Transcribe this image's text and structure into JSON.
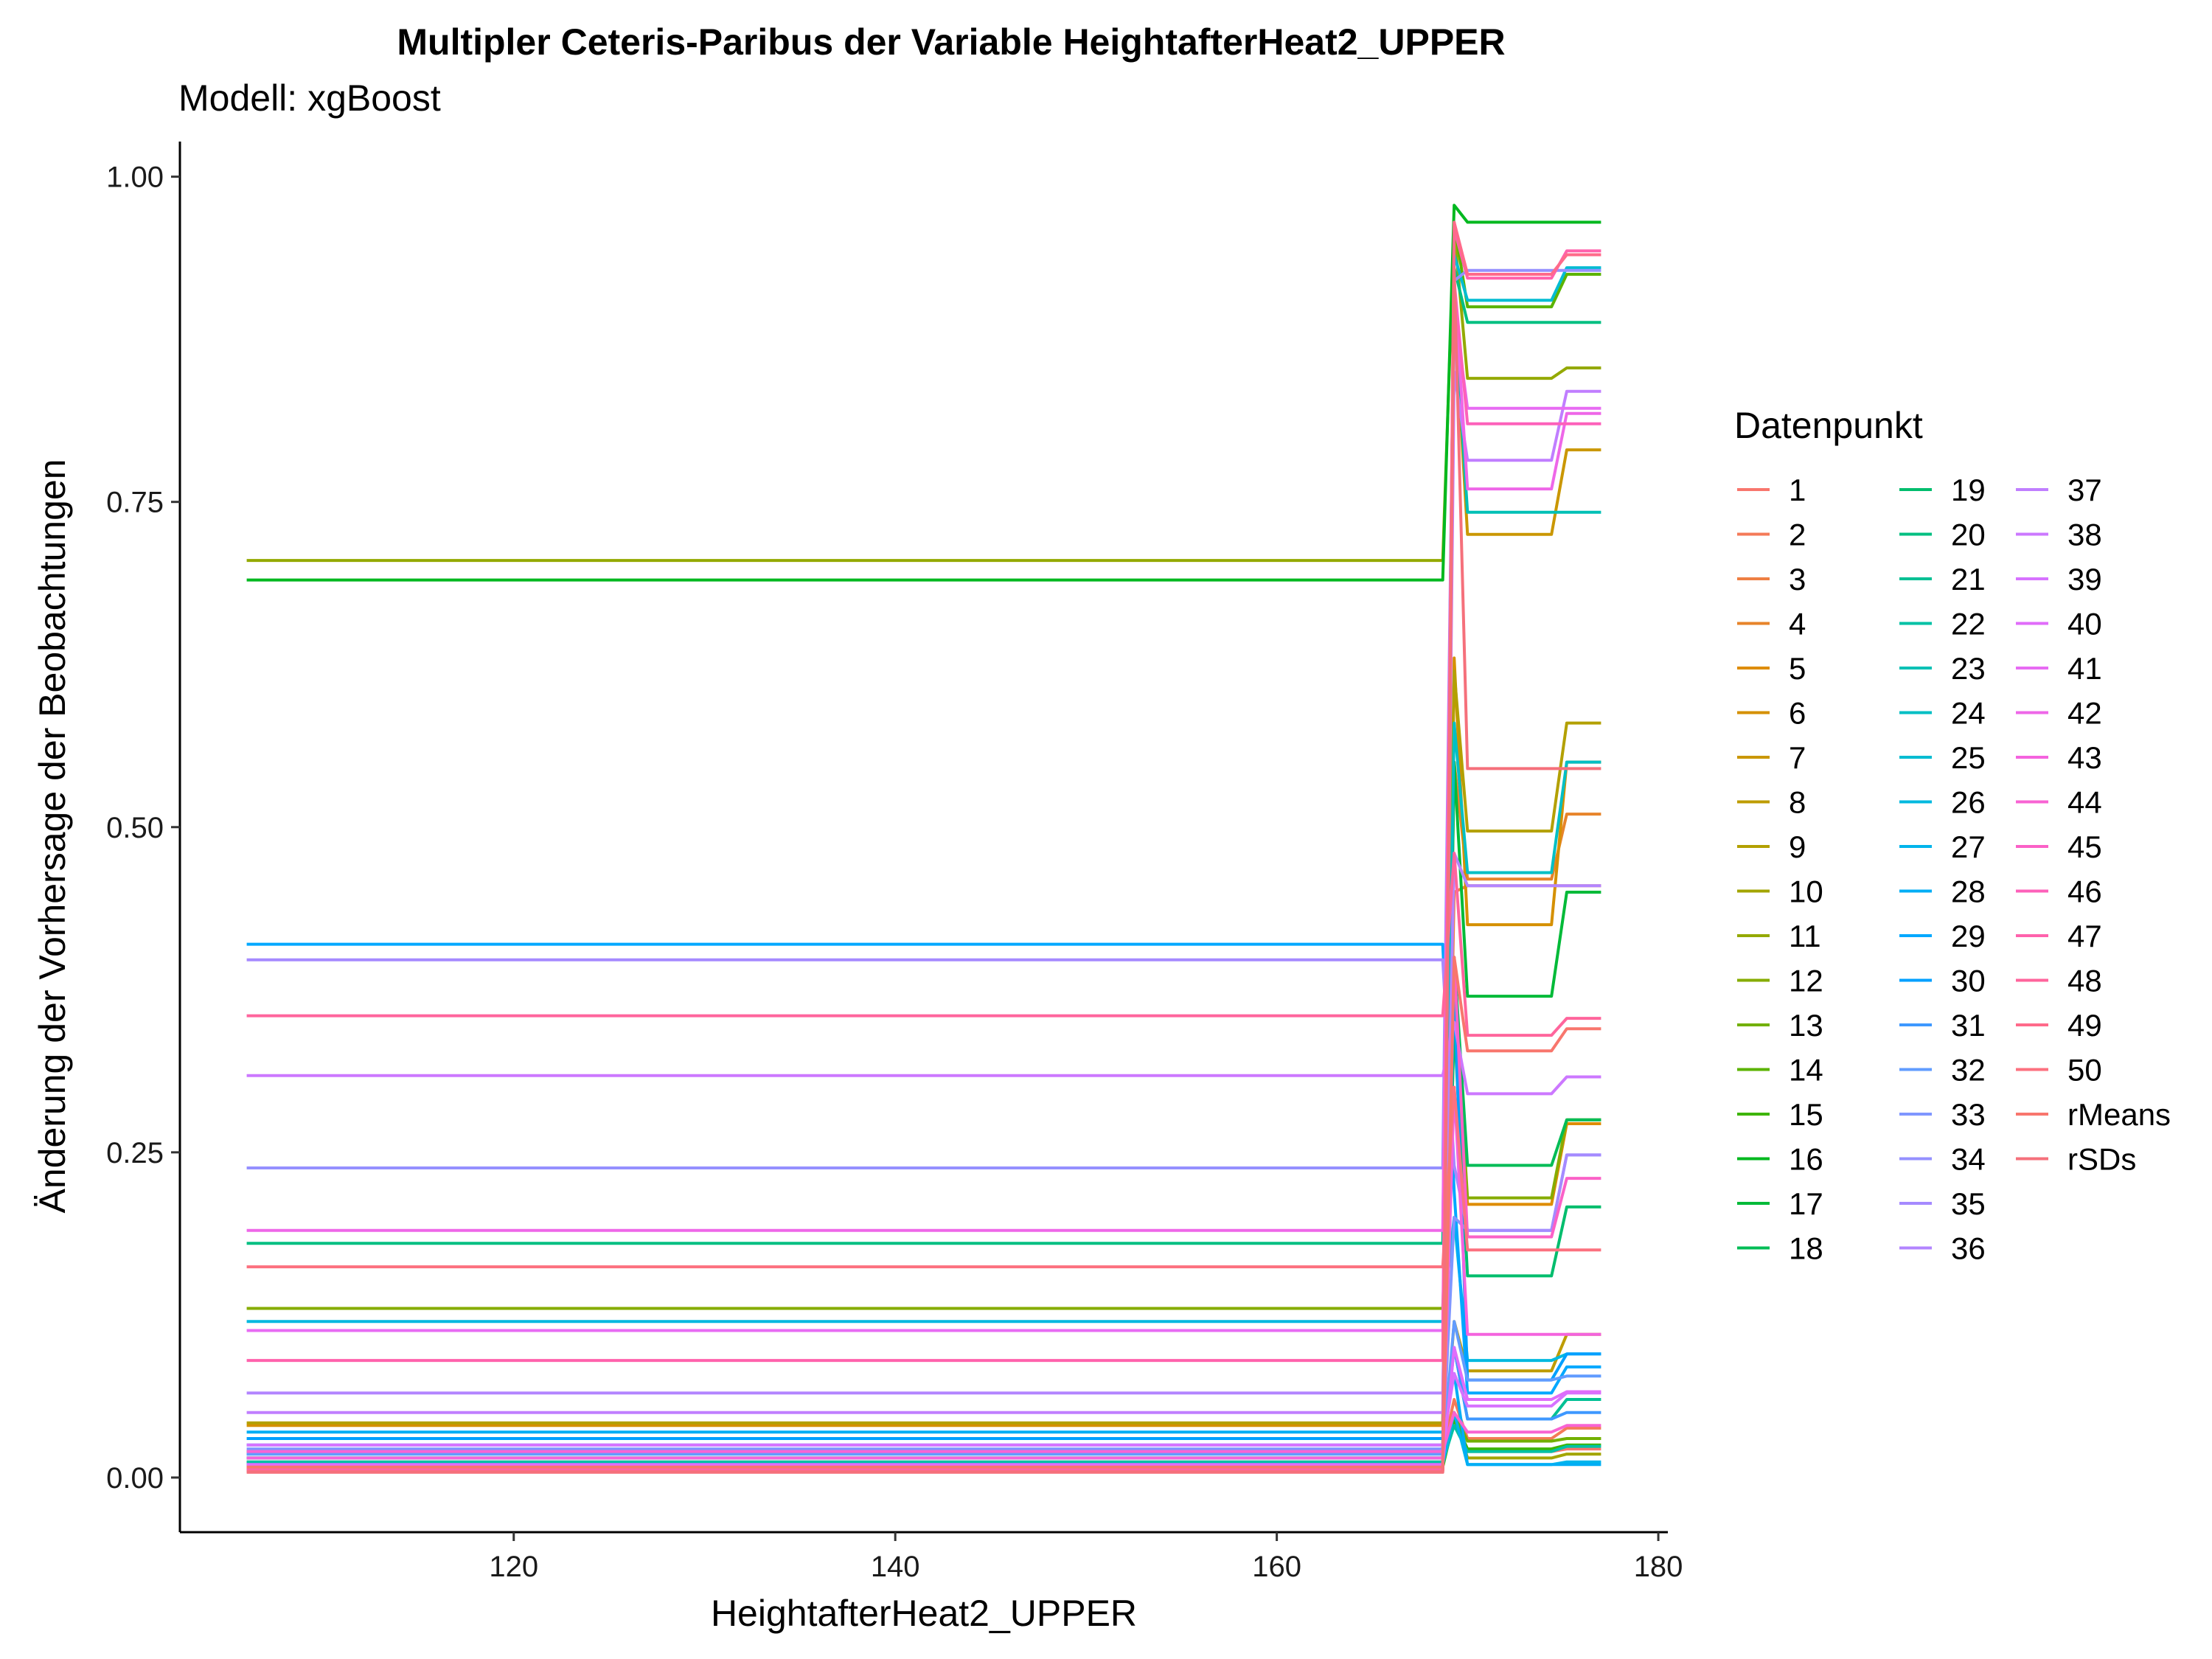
{
  "chart_data": {
    "type": "line",
    "title": "Multipler Ceteris-Paribus der Variable HeightafterHeat2_UPPER",
    "subtitle": "Modell: xgBoost",
    "xlabel": "HeightafterHeat2_UPPER",
    "ylabel": "Änderung der Vorhersage der Beobachtungen",
    "xlim": [
      102.5,
      180.5
    ],
    "ylim": [
      -0.042,
      1.027
    ],
    "x_ticks": [
      120,
      140,
      160,
      180
    ],
    "y_ticks": [
      0.0,
      0.25,
      0.5,
      0.75,
      1.0
    ],
    "x_tick_labels": [
      "120",
      "140",
      "160",
      "180"
    ],
    "y_tick_labels": [
      "0.00",
      "0.25",
      "0.50",
      "0.75",
      "1.00"
    ],
    "x": [
      106,
      168.7,
      169.3,
      170.0,
      174.4,
      175.2,
      177
    ],
    "grid": false,
    "legend": {
      "title": "Datenpunkt",
      "placement": "right",
      "columns": 3
    },
    "series": [
      {
        "name": "1",
        "color": "#F8766D",
        "values": [
          0.012,
          0.012,
          0.048,
          0.02,
          0.02,
          0.022,
          0.022
        ]
      },
      {
        "name": "2",
        "color": "#F47A58",
        "values": [
          0.02,
          0.02,
          0.06,
          0.03,
          0.03,
          0.038,
          0.038
        ]
      },
      {
        "name": "3",
        "color": "#EE7F43",
        "values": [
          0.008,
          0.008,
          0.45,
          0.455,
          0.455,
          0.455,
          0.455
        ]
      },
      {
        "name": "4",
        "color": "#E7842A",
        "values": [
          0.005,
          0.005,
          0.55,
          0.46,
          0.46,
          0.51,
          0.51
        ]
      },
      {
        "name": "5",
        "color": "#DE8C00",
        "values": [
          0.01,
          0.01,
          0.35,
          0.21,
          0.21,
          0.272,
          0.272
        ]
      },
      {
        "name": "6",
        "color": "#D59000",
        "values": [
          0.04,
          0.04,
          0.63,
          0.425,
          0.425,
          0.55,
          0.55
        ]
      },
      {
        "name": "7",
        "color": "#CA9700",
        "values": [
          0.006,
          0.006,
          0.9,
          0.725,
          0.725,
          0.79,
          0.79
        ]
      },
      {
        "name": "8",
        "color": "#BE9C00",
        "values": [
          0.007,
          0.007,
          0.12,
          0.082,
          0.082,
          0.11,
          0.11
        ]
      },
      {
        "name": "9",
        "color": "#B3A000",
        "values": [
          0.042,
          0.042,
          0.62,
          0.497,
          0.497,
          0.58,
          0.58
        ]
      },
      {
        "name": "10",
        "color": "#A3A500",
        "values": [
          0.009,
          0.009,
          0.05,
          0.015,
          0.015,
          0.018,
          0.018
        ]
      },
      {
        "name": "11",
        "color": "#94A900",
        "values": [
          0.705,
          0.705,
          0.96,
          0.845,
          0.845,
          0.853,
          0.853
        ]
      },
      {
        "name": "12",
        "color": "#86AC00",
        "values": [
          0.13,
          0.13,
          0.38,
          0.215,
          0.215,
          0.275,
          0.275
        ]
      },
      {
        "name": "13",
        "color": "#72B000",
        "values": [
          0.011,
          0.011,
          0.05,
          0.028,
          0.028,
          0.03,
          0.03
        ]
      },
      {
        "name": "14",
        "color": "#5BB300",
        "values": [
          0.02,
          0.02,
          0.965,
          0.9,
          0.9,
          0.925,
          0.925
        ]
      },
      {
        "name": "15",
        "color": "#3DB500",
        "values": [
          0.008,
          0.008,
          0.045,
          0.022,
          0.022,
          0.025,
          0.025
        ]
      },
      {
        "name": "16",
        "color": "#00B81F",
        "values": [
          0.69,
          0.69,
          0.978,
          0.965,
          0.965,
          0.965,
          0.965
        ]
      },
      {
        "name": "17",
        "color": "#00BA38",
        "values": [
          0.015,
          0.015,
          0.55,
          0.37,
          0.37,
          0.45,
          0.45
        ]
      },
      {
        "name": "18",
        "color": "#00BC56",
        "values": [
          0.01,
          0.01,
          0.4,
          0.24,
          0.24,
          0.275,
          0.275
        ]
      },
      {
        "name": "19",
        "color": "#00BD6D",
        "values": [
          0.01,
          0.01,
          0.35,
          0.155,
          0.155,
          0.208,
          0.208
        ]
      },
      {
        "name": "20",
        "color": "#00BF81",
        "values": [
          0.18,
          0.18,
          0.93,
          0.888,
          0.888,
          0.888,
          0.888
        ]
      },
      {
        "name": "21",
        "color": "#00C094",
        "values": [
          0.015,
          0.015,
          0.1,
          0.045,
          0.045,
          0.06,
          0.06
        ]
      },
      {
        "name": "22",
        "color": "#00C1A5",
        "values": [
          0.012,
          0.012,
          0.04,
          0.02,
          0.02,
          0.024,
          0.024
        ]
      },
      {
        "name": "23",
        "color": "#00C0B5",
        "values": [
          0.02,
          0.02,
          0.9,
          0.742,
          0.742,
          0.742,
          0.742
        ]
      },
      {
        "name": "24",
        "color": "#00BFC4",
        "values": [
          0.018,
          0.018,
          0.58,
          0.465,
          0.465,
          0.55,
          0.55
        ]
      },
      {
        "name": "25",
        "color": "#00BCD2",
        "values": [
          0.01,
          0.01,
          0.94,
          0.905,
          0.905,
          0.93,
          0.93
        ]
      },
      {
        "name": "26",
        "color": "#00B9DF",
        "values": [
          0.12,
          0.12,
          0.2,
          0.09,
          0.09,
          0.095,
          0.095
        ]
      },
      {
        "name": "27",
        "color": "#00B4EB",
        "values": [
          0.01,
          0.01,
          0.05,
          0.01,
          0.01,
          0.012,
          0.012
        ]
      },
      {
        "name": "28",
        "color": "#00AEF5",
        "values": [
          0.035,
          0.035,
          0.08,
          0.01,
          0.01,
          0.01,
          0.01
        ]
      },
      {
        "name": "29",
        "color": "#00A8FF",
        "values": [
          0.41,
          0.41,
          0.22,
          0.065,
          0.065,
          0.085,
          0.085
        ]
      },
      {
        "name": "30",
        "color": "#00A0FF",
        "values": [
          0.03,
          0.03,
          0.38,
          0.075,
          0.075,
          0.095,
          0.095
        ]
      },
      {
        "name": "31",
        "color": "#3E98FF",
        "values": [
          0.025,
          0.025,
          0.1,
          0.045,
          0.045,
          0.05,
          0.05
        ]
      },
      {
        "name": "32",
        "color": "#619CFF",
        "values": [
          0.018,
          0.018,
          0.12,
          0.075,
          0.075,
          0.078,
          0.078
        ]
      },
      {
        "name": "33",
        "color": "#7F96FF",
        "values": [
          0.022,
          0.022,
          0.2,
          0.19,
          0.19,
          0.248,
          0.248
        ]
      },
      {
        "name": "34",
        "color": "#9590FF",
        "values": [
          0.238,
          0.238,
          0.92,
          0.928,
          0.928,
          0.928,
          0.928
        ]
      },
      {
        "name": "35",
        "color": "#A58AFF",
        "values": [
          0.398,
          0.398,
          0.24,
          0.19,
          0.19,
          0.248,
          0.248
        ]
      },
      {
        "name": "36",
        "color": "#B385FF",
        "values": [
          0.065,
          0.065,
          0.48,
          0.455,
          0.455,
          0.455,
          0.455
        ]
      },
      {
        "name": "37",
        "color": "#C07EFF",
        "values": [
          0.05,
          0.05,
          0.85,
          0.782,
          0.782,
          0.835,
          0.835
        ]
      },
      {
        "name": "38",
        "color": "#CC78FF",
        "values": [
          0.309,
          0.309,
          0.35,
          0.295,
          0.295,
          0.308,
          0.308
        ]
      },
      {
        "name": "39",
        "color": "#D772FF",
        "values": [
          0.025,
          0.025,
          0.08,
          0.055,
          0.055,
          0.065,
          0.065
        ]
      },
      {
        "name": "40",
        "color": "#E06CFA",
        "values": [
          0.01,
          0.01,
          0.1,
          0.06,
          0.06,
          0.066,
          0.066
        ]
      },
      {
        "name": "41",
        "color": "#E76BF3",
        "values": [
          0.113,
          0.113,
          0.9,
          0.822,
          0.822,
          0.822,
          0.822
        ]
      },
      {
        "name": "42",
        "color": "#EE67E8",
        "values": [
          0.19,
          0.19,
          0.92,
          0.76,
          0.76,
          0.818,
          0.818
        ]
      },
      {
        "name": "43",
        "color": "#F463DE",
        "values": [
          0.015,
          0.015,
          0.3,
          0.11,
          0.11,
          0.11,
          0.11
        ]
      },
      {
        "name": "44",
        "color": "#F863D3",
        "values": [
          0.02,
          0.02,
          0.05,
          0.035,
          0.035,
          0.04,
          0.04
        ]
      },
      {
        "name": "45",
        "color": "#FB61C7",
        "values": [
          0.008,
          0.008,
          0.4,
          0.185,
          0.185,
          0.23,
          0.23
        ]
      },
      {
        "name": "46",
        "color": "#FD61BA",
        "values": [
          0.006,
          0.006,
          0.92,
          0.81,
          0.81,
          0.81,
          0.81
        ]
      },
      {
        "name": "47",
        "color": "#FF62AC",
        "values": [
          0.09,
          0.09,
          0.96,
          0.922,
          0.922,
          0.943,
          0.943
        ]
      },
      {
        "name": "48",
        "color": "#FF659C",
        "values": [
          0.355,
          0.355,
          0.48,
          0.34,
          0.34,
          0.353,
          0.353
        ]
      },
      {
        "name": "49",
        "color": "#FF6A8A",
        "values": [
          0.005,
          0.005,
          0.965,
          0.925,
          0.925,
          0.94,
          0.94
        ]
      },
      {
        "name": "50",
        "color": "#FC717F",
        "values": [
          0.162,
          0.162,
          0.3,
          0.175,
          0.175,
          0.175,
          0.175
        ]
      },
      {
        "name": "rMeans",
        "color": "#F8766D",
        "values": [
          0.008,
          0.008,
          0.4,
          0.328,
          0.328,
          0.345,
          0.345
        ]
      },
      {
        "name": "rSDs",
        "color": "#F5707B",
        "values": [
          0.004,
          0.004,
          0.93,
          0.545,
          0.545,
          0.545,
          0.545
        ]
      }
    ]
  }
}
